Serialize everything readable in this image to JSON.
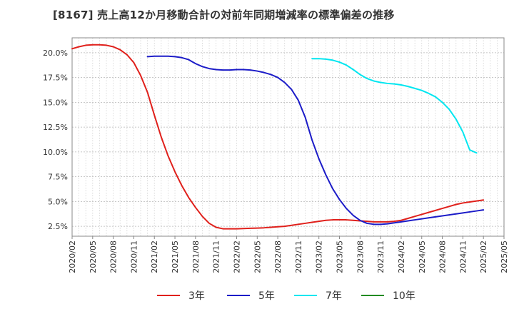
{
  "chart_data": {
    "type": "line",
    "title": "[8167]  売上高12か月移動合計の対前年同期増減率の標準偏差の推移",
    "xlabel": "",
    "ylabel": "",
    "y_unit": "%",
    "ylim": [
      1.5,
      21.5
    ],
    "y_ticks": [
      2.5,
      5.0,
      7.5,
      10.0,
      12.5,
      15.0,
      17.5,
      20.0
    ],
    "y_tick_labels": [
      "2.5%",
      "5.0%",
      "7.5%",
      "10.0%",
      "12.5%",
      "15.0%",
      "17.5%",
      "20.0%"
    ],
    "x_tick_labels": [
      "2020/02",
      "2020/05",
      "2020/08",
      "2020/11",
      "2021/02",
      "2021/05",
      "2021/08",
      "2021/11",
      "2022/02",
      "2022/05",
      "2022/08",
      "2022/11",
      "2023/02",
      "2023/05",
      "2023/08",
      "2023/11",
      "2024/02",
      "2024/05",
      "2024/08",
      "2024/11",
      "2025/02",
      "2025/05"
    ],
    "x_range": [
      "2020/02",
      "2025/05"
    ],
    "grid": true,
    "legend_position": "bottom",
    "series": [
      {
        "name": "3年",
        "color": "#e0201b",
        "points": [
          [
            "2020/02",
            20.4
          ],
          [
            "2020/03",
            20.6
          ],
          [
            "2020/04",
            20.75
          ],
          [
            "2020/05",
            20.8
          ],
          [
            "2020/06",
            20.8
          ],
          [
            "2020/07",
            20.75
          ],
          [
            "2020/08",
            20.6
          ],
          [
            "2020/09",
            20.3
          ],
          [
            "2020/10",
            19.8
          ],
          [
            "2020/11",
            19.0
          ],
          [
            "2020/12",
            17.7
          ],
          [
            "2021/01",
            16.0
          ],
          [
            "2021/02",
            13.7
          ],
          [
            "2021/03",
            11.5
          ],
          [
            "2021/04",
            9.6
          ],
          [
            "2021/05",
            8.0
          ],
          [
            "2021/06",
            6.6
          ],
          [
            "2021/07",
            5.4
          ],
          [
            "2021/08",
            4.4
          ],
          [
            "2021/09",
            3.5
          ],
          [
            "2021/10",
            2.8
          ],
          [
            "2021/11",
            2.4
          ],
          [
            "2021/12",
            2.25
          ],
          [
            "2022/01",
            2.25
          ],
          [
            "2022/02",
            2.25
          ],
          [
            "2022/03",
            2.27
          ],
          [
            "2022/04",
            2.3
          ],
          [
            "2022/05",
            2.32
          ],
          [
            "2022/06",
            2.35
          ],
          [
            "2022/07",
            2.4
          ],
          [
            "2022/08",
            2.45
          ],
          [
            "2022/09",
            2.5
          ],
          [
            "2022/10",
            2.6
          ],
          [
            "2022/11",
            2.7
          ],
          [
            "2022/12",
            2.8
          ],
          [
            "2023/01",
            2.9
          ],
          [
            "2023/02",
            3.0
          ],
          [
            "2023/03",
            3.1
          ],
          [
            "2023/04",
            3.15
          ],
          [
            "2023/05",
            3.15
          ],
          [
            "2023/06",
            3.15
          ],
          [
            "2023/07",
            3.1
          ],
          [
            "2023/08",
            3.05
          ],
          [
            "2023/09",
            3.0
          ],
          [
            "2023/10",
            2.95
          ],
          [
            "2023/11",
            2.95
          ],
          [
            "2023/12",
            2.95
          ],
          [
            "2024/01",
            3.0
          ],
          [
            "2024/02",
            3.1
          ],
          [
            "2024/03",
            3.3
          ],
          [
            "2024/04",
            3.5
          ],
          [
            "2024/05",
            3.7
          ],
          [
            "2024/06",
            3.9
          ],
          [
            "2024/07",
            4.1
          ],
          [
            "2024/08",
            4.3
          ],
          [
            "2024/09",
            4.5
          ],
          [
            "2024/10",
            4.7
          ],
          [
            "2024/11",
            4.85
          ],
          [
            "2024/12",
            4.95
          ],
          [
            "2025/01",
            5.05
          ],
          [
            "2025/02",
            5.15
          ]
        ]
      },
      {
        "name": "5年",
        "color": "#1c1cc8",
        "points": [
          [
            "2021/01",
            19.6
          ],
          [
            "2021/02",
            19.65
          ],
          [
            "2021/03",
            19.65
          ],
          [
            "2021/04",
            19.65
          ],
          [
            "2021/05",
            19.6
          ],
          [
            "2021/06",
            19.5
          ],
          [
            "2021/07",
            19.3
          ],
          [
            "2021/08",
            18.9
          ],
          [
            "2021/09",
            18.6
          ],
          [
            "2021/10",
            18.4
          ],
          [
            "2021/11",
            18.3
          ],
          [
            "2021/12",
            18.25
          ],
          [
            "2022/01",
            18.25
          ],
          [
            "2022/02",
            18.3
          ],
          [
            "2022/03",
            18.3
          ],
          [
            "2022/04",
            18.25
          ],
          [
            "2022/05",
            18.15
          ],
          [
            "2022/06",
            18.0
          ],
          [
            "2022/07",
            17.8
          ],
          [
            "2022/08",
            17.5
          ],
          [
            "2022/09",
            17.0
          ],
          [
            "2022/10",
            16.3
          ],
          [
            "2022/11",
            15.2
          ],
          [
            "2022/12",
            13.5
          ],
          [
            "2023/01",
            11.2
          ],
          [
            "2023/02",
            9.3
          ],
          [
            "2023/03",
            7.7
          ],
          [
            "2023/04",
            6.3
          ],
          [
            "2023/05",
            5.2
          ],
          [
            "2023/06",
            4.3
          ],
          [
            "2023/07",
            3.6
          ],
          [
            "2023/08",
            3.1
          ],
          [
            "2023/09",
            2.8
          ],
          [
            "2023/10",
            2.7
          ],
          [
            "2023/11",
            2.7
          ],
          [
            "2023/12",
            2.75
          ],
          [
            "2024/01",
            2.85
          ],
          [
            "2024/02",
            2.95
          ],
          [
            "2024/03",
            3.05
          ],
          [
            "2024/04",
            3.15
          ],
          [
            "2024/05",
            3.25
          ],
          [
            "2024/06",
            3.35
          ],
          [
            "2024/07",
            3.45
          ],
          [
            "2024/08",
            3.55
          ],
          [
            "2024/09",
            3.65
          ],
          [
            "2024/10",
            3.75
          ],
          [
            "2024/11",
            3.85
          ],
          [
            "2024/12",
            3.95
          ],
          [
            "2025/01",
            4.05
          ],
          [
            "2025/02",
            4.15
          ]
        ]
      },
      {
        "name": "7年",
        "color": "#00e6f0",
        "points": [
          [
            "2023/01",
            19.4
          ],
          [
            "2023/02",
            19.4
          ],
          [
            "2023/03",
            19.35
          ],
          [
            "2023/04",
            19.25
          ],
          [
            "2023/05",
            19.05
          ],
          [
            "2023/06",
            18.75
          ],
          [
            "2023/07",
            18.3
          ],
          [
            "2023/08",
            17.8
          ],
          [
            "2023/09",
            17.4
          ],
          [
            "2023/10",
            17.15
          ],
          [
            "2023/11",
            17.0
          ],
          [
            "2023/12",
            16.9
          ],
          [
            "2024/01",
            16.85
          ],
          [
            "2024/02",
            16.75
          ],
          [
            "2024/03",
            16.6
          ],
          [
            "2024/04",
            16.4
          ],
          [
            "2024/05",
            16.2
          ],
          [
            "2024/06",
            15.9
          ],
          [
            "2024/07",
            15.55
          ],
          [
            "2024/08",
            15.0
          ],
          [
            "2024/09",
            14.3
          ],
          [
            "2024/10",
            13.3
          ],
          [
            "2024/11",
            12.0
          ],
          [
            "2024/12",
            10.2
          ],
          [
            "2025/01",
            9.9
          ]
        ]
      },
      {
        "name": "10年",
        "color": "#228b22",
        "points": []
      }
    ]
  }
}
